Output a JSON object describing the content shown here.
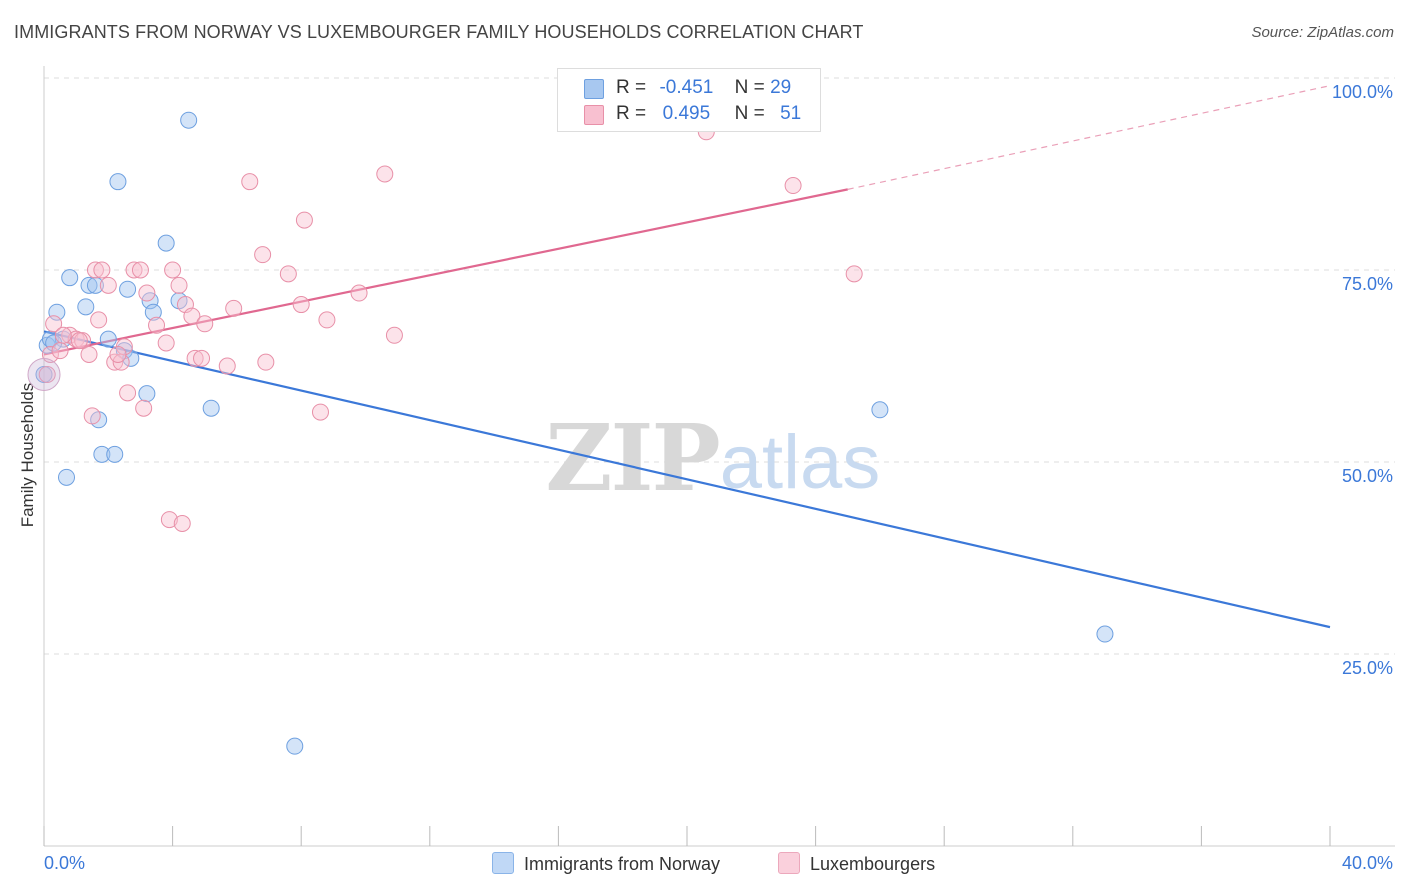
{
  "title": "IMMIGRANTS FROM NORWAY VS LUXEMBOURGER FAMILY HOUSEHOLDS CORRELATION CHART",
  "source": "Source: ZipAtlas.com",
  "watermark": {
    "zip": "ZIP",
    "atlas": "atlas"
  },
  "legend": {
    "r_label": "R =",
    "n_label": "N =",
    "rows": [
      {
        "r": "-0.451",
        "n": "29",
        "color": "#a8c8f0",
        "border": "#6ea0e0"
      },
      {
        "r": "0.495",
        "n": "51",
        "color": "#f8c0d0",
        "border": "#e890a8"
      }
    ]
  },
  "bottom_legend": {
    "norway": "Immigrants from Norway",
    "lux": "Luxembourgers"
  },
  "chart_data": {
    "type": "scatter",
    "xlabel": "",
    "ylabel": "Family Households",
    "xlim": [
      0,
      40
    ],
    "ylim": [
      0,
      100
    ],
    "x_tick_labels": [
      "0.0%",
      "40.0%"
    ],
    "y_tick_labels": [
      "25.0%",
      "50.0%",
      "75.0%",
      "100.0%"
    ],
    "y_tick_values": [
      25,
      50,
      75,
      100
    ],
    "grid": true,
    "legend_position": "top-center",
    "series": [
      {
        "name": "Immigrants from Norway",
        "color": "#6ea0e0",
        "fill": "rgba(160,196,240,0.45)",
        "line_color": "#3b78d8",
        "trend": {
          "x": [
            0,
            40
          ],
          "y": [
            67.0,
            28.5
          ]
        },
        "points": [
          [
            0.1,
            65.2
          ],
          [
            0.2,
            66.0
          ],
          [
            0.4,
            69.5
          ],
          [
            0.6,
            66.0
          ],
          [
            0.7,
            48.0
          ],
          [
            0.8,
            74.0
          ],
          [
            1.3,
            70.2
          ],
          [
            1.4,
            73.0
          ],
          [
            1.6,
            73.0
          ],
          [
            1.7,
            55.5
          ],
          [
            1.8,
            51.0
          ],
          [
            2.0,
            66.0
          ],
          [
            2.2,
            51.0
          ],
          [
            2.3,
            86.5
          ],
          [
            2.5,
            64.5
          ],
          [
            2.6,
            72.5
          ],
          [
            2.7,
            63.5
          ],
          [
            3.2,
            58.9
          ],
          [
            3.3,
            71.0
          ],
          [
            3.4,
            69.5
          ],
          [
            3.8,
            78.5
          ],
          [
            4.2,
            71.0
          ],
          [
            4.5,
            94.5
          ],
          [
            5.2,
            57.0
          ],
          [
            7.8,
            13.0
          ],
          [
            26.0,
            56.8
          ],
          [
            33.0,
            27.6
          ],
          [
            0.0,
            61.4
          ],
          [
            0.3,
            65.5
          ]
        ]
      },
      {
        "name": "Luxembourgers",
        "color": "#e890a8",
        "fill": "rgba(248,192,208,0.45)",
        "line_color": "#e06890",
        "trend": {
          "x": [
            0,
            25
          ],
          "y": [
            64.0,
            85.5
          ]
        },
        "trend_dashed": {
          "x": [
            25,
            40
          ],
          "y": [
            85.5,
            99.0
          ]
        },
        "points": [
          [
            0.1,
            61.4
          ],
          [
            0.2,
            64.0
          ],
          [
            0.3,
            68.0
          ],
          [
            0.5,
            64.5
          ],
          [
            0.8,
            66.5
          ],
          [
            1.0,
            66.0
          ],
          [
            1.2,
            65.8
          ],
          [
            1.4,
            64.0
          ],
          [
            1.5,
            56.0
          ],
          [
            1.6,
            75.0
          ],
          [
            1.7,
            68.5
          ],
          [
            1.8,
            75.0
          ],
          [
            2.0,
            73.0
          ],
          [
            2.2,
            63.0
          ],
          [
            2.4,
            63.0
          ],
          [
            2.5,
            65.0
          ],
          [
            2.6,
            59.0
          ],
          [
            2.8,
            75.0
          ],
          [
            3.1,
            57.0
          ],
          [
            3.2,
            72.0
          ],
          [
            3.5,
            67.8
          ],
          [
            3.8,
            65.5
          ],
          [
            3.9,
            42.5
          ],
          [
            4.0,
            75.0
          ],
          [
            4.2,
            73.0
          ],
          [
            4.3,
            42.0
          ],
          [
            4.4,
            70.5
          ],
          [
            4.6,
            69.0
          ],
          [
            4.7,
            63.5
          ],
          [
            4.9,
            63.5
          ],
          [
            5.0,
            68.0
          ],
          [
            5.7,
            62.5
          ],
          [
            5.9,
            70.0
          ],
          [
            6.4,
            86.5
          ],
          [
            6.8,
            77.0
          ],
          [
            6.9,
            63.0
          ],
          [
            7.6,
            74.5
          ],
          [
            8.0,
            70.5
          ],
          [
            8.1,
            81.5
          ],
          [
            8.6,
            56.5
          ],
          [
            8.8,
            68.5
          ],
          [
            9.8,
            72.0
          ],
          [
            10.6,
            87.5
          ],
          [
            10.9,
            66.5
          ],
          [
            20.6,
            93.0
          ],
          [
            23.3,
            86.0
          ],
          [
            25.2,
            74.5
          ],
          [
            0.6,
            66.5
          ],
          [
            1.1,
            65.8
          ],
          [
            2.3,
            64.0
          ],
          [
            3.0,
            75.0
          ]
        ]
      }
    ]
  }
}
